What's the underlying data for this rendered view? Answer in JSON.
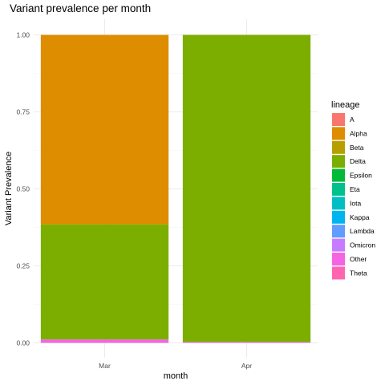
{
  "chart_data": {
    "type": "bar",
    "stacked": true,
    "title": "Variant prevalence per month",
    "xlabel": "month",
    "ylabel": "Variant Prevalence",
    "categories": [
      "Mar",
      "Apr"
    ],
    "ylim": [
      0,
      1
    ],
    "yticks": [
      "0.00",
      "0.25",
      "0.50",
      "0.75",
      "1.00"
    ],
    "grid": true,
    "legend_position": "right",
    "legend_title": "lineage",
    "series": [
      {
        "name": "A",
        "color": "#F8766D",
        "values": [
          0,
          0
        ]
      },
      {
        "name": "Alpha",
        "color": "#DE8C00",
        "values": [
          0.615,
          0
        ]
      },
      {
        "name": "Beta",
        "color": "#B79F00",
        "values": [
          0,
          0
        ]
      },
      {
        "name": "Delta",
        "color": "#7CAE00",
        "values": [
          0.374,
          0.997
        ]
      },
      {
        "name": "Epsilon",
        "color": "#00BA38",
        "values": [
          0,
          0
        ]
      },
      {
        "name": "Eta",
        "color": "#00C08B",
        "values": [
          0,
          0
        ]
      },
      {
        "name": "Iota",
        "color": "#00BFC4",
        "values": [
          0,
          0
        ]
      },
      {
        "name": "Kappa",
        "color": "#00B4F0",
        "values": [
          0,
          0
        ]
      },
      {
        "name": "Lambda",
        "color": "#619CFF",
        "values": [
          0,
          0
        ]
      },
      {
        "name": "Omicron",
        "color": "#C77CFF",
        "values": [
          0,
          0
        ]
      },
      {
        "name": "Other",
        "color": "#F564E3",
        "values": [
          0.011,
          0.003
        ]
      },
      {
        "name": "Theta",
        "color": "#FF64B0",
        "values": [
          0,
          0
        ]
      }
    ]
  }
}
